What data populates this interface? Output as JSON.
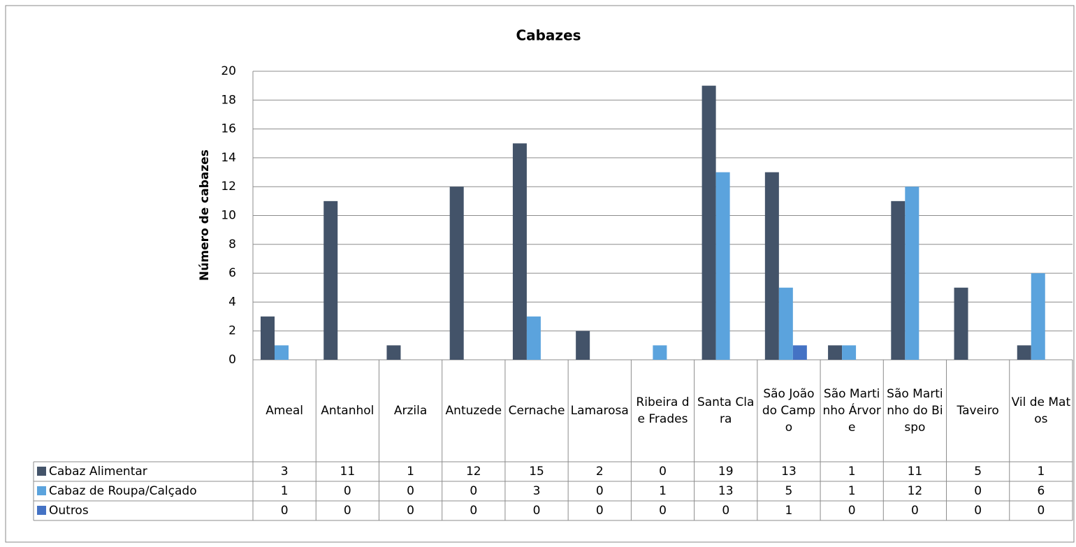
{
  "chart_data": {
    "type": "bar",
    "title": "Cabazes",
    "ylabel": "Número de cabazes",
    "categories": [
      "Ameal",
      "Antanhol",
      "Arzila",
      "Antuzede",
      "Cernache",
      "Lamarosa",
      "Ribeira de Frades",
      "Santa Clara",
      "São João do Campo",
      "São Martinho Árvore",
      "São Martinho do Bispo",
      "Taveiro",
      "Vil de Matos"
    ],
    "series": [
      {
        "name": "Cabaz Alimentar",
        "color": "#435369",
        "values": [
          3,
          11,
          1,
          12,
          15,
          2,
          0,
          19,
          13,
          1,
          11,
          5,
          1
        ]
      },
      {
        "name": "Cabaz de Roupa/Calçado",
        "color": "#5ba3dd",
        "values": [
          1,
          0,
          0,
          0,
          3,
          0,
          1,
          13,
          5,
          1,
          12,
          0,
          6
        ]
      },
      {
        "name": "Outros",
        "color": "#4472c4",
        "values": [
          0,
          0,
          0,
          0,
          0,
          0,
          0,
          0,
          1,
          0,
          0,
          0,
          0
        ]
      }
    ],
    "ylim": [
      0,
      20
    ],
    "yticks": [
      0,
      2,
      4,
      6,
      8,
      10,
      12,
      14,
      16,
      18,
      20
    ],
    "grid": true,
    "data_table": true
  }
}
